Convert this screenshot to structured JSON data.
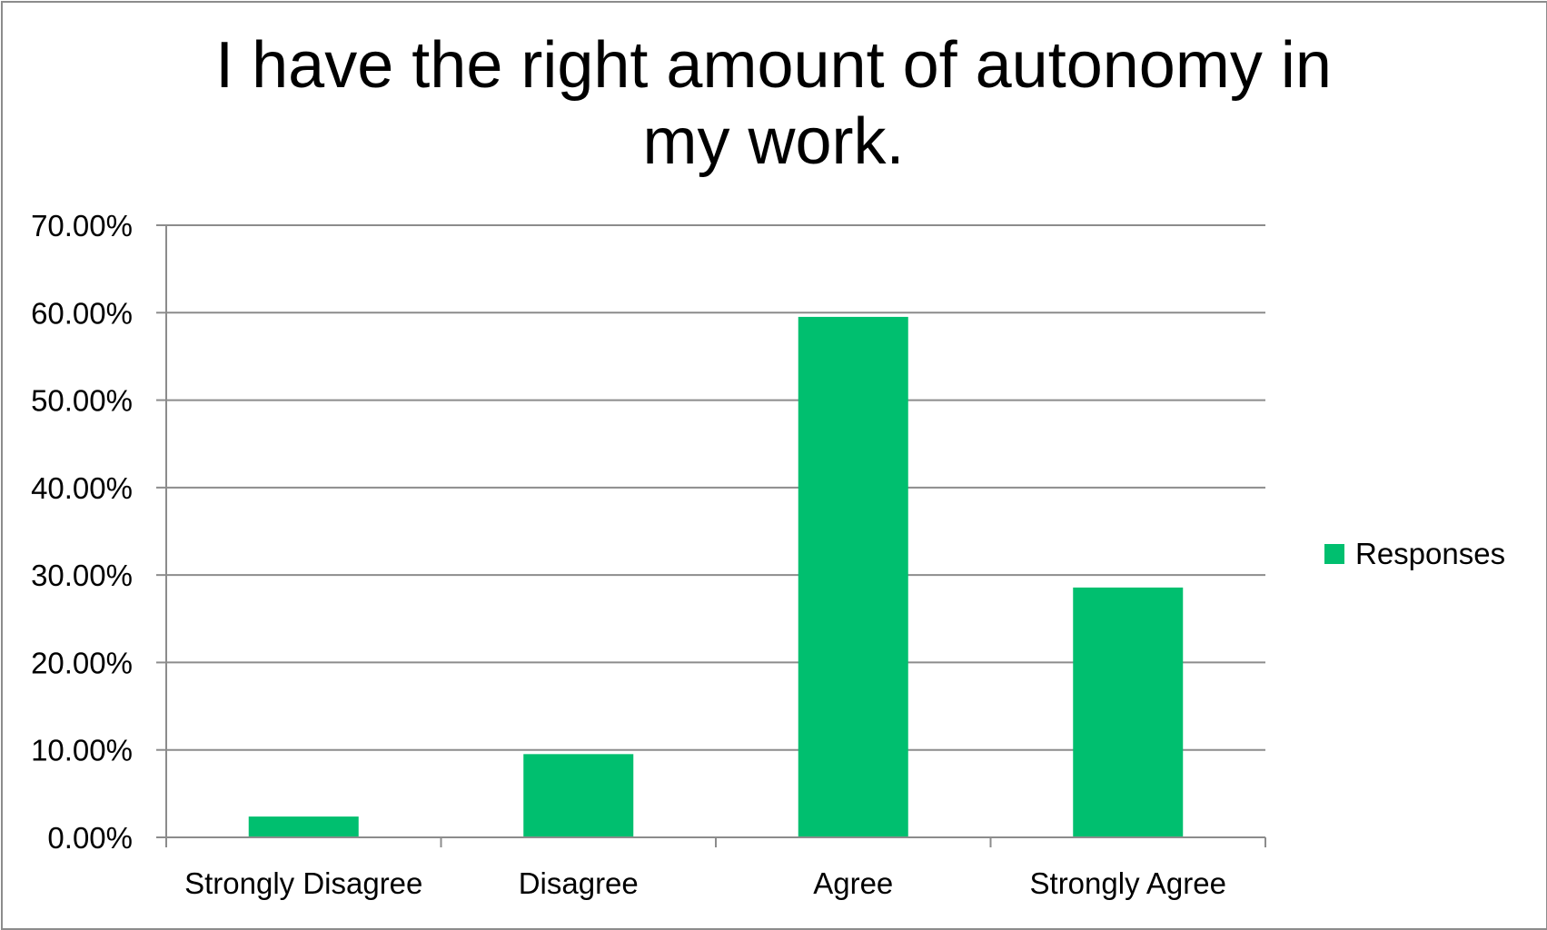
{
  "chart_data": {
    "type": "bar",
    "title_lines": [
      "I have the right amount of autonomy in",
      "my work."
    ],
    "categories": [
      "Strongly Disagree",
      "Disagree",
      "Agree",
      "Strongly Agree"
    ],
    "series": [
      {
        "name": "Responses",
        "values": [
          2.38,
          9.52,
          59.52,
          28.57
        ],
        "color": "#00BF6F"
      }
    ],
    "ylim": [
      0,
      70
    ],
    "yticks": [
      0,
      10,
      20,
      30,
      40,
      50,
      60,
      70
    ],
    "ytick_labels": [
      "0.00%",
      "10.00%",
      "20.00%",
      "30.00%",
      "40.00%",
      "50.00%",
      "60.00%",
      "70.00%"
    ],
    "grid": true,
    "legend_position": "right"
  }
}
